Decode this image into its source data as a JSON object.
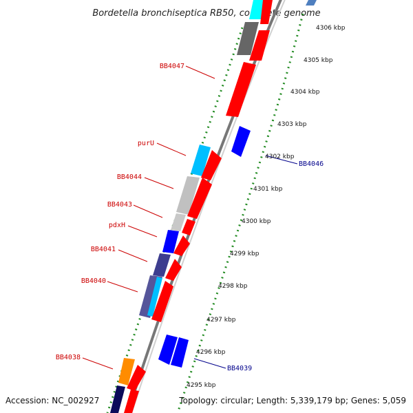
{
  "title": "Bordetella bronchiseptica RB50, complete genome",
  "footer": {
    "accession": "Accession: NC_002927",
    "topology": "Topology: circular; Length: 5,339,179 bp; Genes: 5,059"
  },
  "scale_labels": [
    "4306 kbp",
    "4305 kbp",
    "4304 kbp",
    "4303 kbp",
    "4302 kbp",
    "4301 kbp",
    "4300 kbp",
    "4299 kbp",
    "4298 kbp",
    "4297 kbp",
    "4296 kbp",
    "4295 kbp"
  ],
  "gene_labels_left": [
    "BB4047",
    "purU",
    "BB4044",
    "BB4043",
    "pdxH",
    "BB4041",
    "BB4040",
    "BB4038"
  ],
  "gene_labels_right": [
    "BB4046",
    "BB4039"
  ],
  "colors": {
    "red_label": "#cc0000",
    "blue_label": "#00008b",
    "forward_cds": "#ff0000",
    "reverse_cds": "#0000ff",
    "rna": "#00bfff",
    "grey_feature": "#b8b8b8",
    "dark_grey_feature": "#666666",
    "dark_blue_feature": "#3d3d8f",
    "orange_feature": "#ff8c00",
    "dotted_ring": "#228b22"
  }
}
